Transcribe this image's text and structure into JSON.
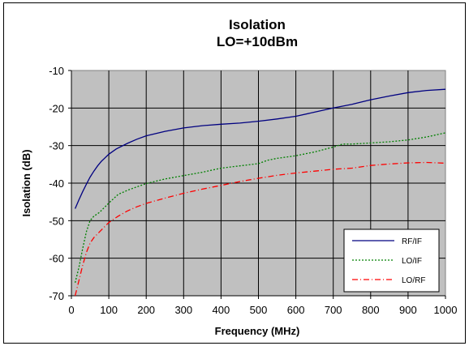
{
  "chart_data": {
    "type": "line",
    "title": "Isolation",
    "subtitle": "LO=+10dBm",
    "xlabel": "Frequency (MHz)",
    "ylabel": "Isolation (dB)",
    "xlim": [
      0,
      1000
    ],
    "ylim": [
      -70,
      -10
    ],
    "x_ticks": [
      "0",
      "100",
      "200",
      "300",
      "400",
      "500",
      "600",
      "700",
      "800",
      "900",
      "1000"
    ],
    "y_ticks": [
      "-10",
      "-20",
      "-30",
      "-40",
      "-50",
      "-60",
      "-70"
    ],
    "grid": true,
    "legend_position": "bottom-right",
    "plot_background": "#c0c0c0",
    "series": [
      {
        "name": "RF/IF",
        "color": "#000080",
        "dash": "solid",
        "x": [
          10,
          20,
          30,
          40,
          50,
          60,
          70,
          80,
          100,
          120,
          150,
          175,
          200,
          250,
          300,
          350,
          400,
          450,
          500,
          550,
          600,
          650,
          700,
          750,
          800,
          850,
          900,
          950,
          1000
        ],
        "y": [
          -46.8,
          -44.5,
          -42.3,
          -40.3,
          -38.4,
          -36.8,
          -35.4,
          -34.2,
          -32.3,
          -30.9,
          -29.4,
          -28.3,
          -27.4,
          -26.2,
          -25.3,
          -24.7,
          -24.3,
          -24.0,
          -23.5,
          -22.9,
          -22.2,
          -21.1,
          -20.0,
          -19.0,
          -17.8,
          -16.8,
          -15.9,
          -15.3,
          -15.0
        ]
      },
      {
        "name": "LO/IF",
        "color": "#008000",
        "dash": "dotted",
        "x": [
          10,
          20,
          30,
          40,
          50,
          60,
          75,
          100,
          125,
          150,
          175,
          200,
          250,
          300,
          350,
          400,
          450,
          500,
          525,
          550,
          600,
          650,
          700,
          725,
          750,
          800,
          850,
          900,
          950,
          1000
        ],
        "y": [
          -66.5,
          -62.5,
          -57.5,
          -53.0,
          -50.0,
          -48.8,
          -47.8,
          -45.3,
          -43.0,
          -41.9,
          -41.0,
          -40.1,
          -38.9,
          -38.0,
          -37.1,
          -36.0,
          -35.4,
          -34.8,
          -33.9,
          -33.4,
          -32.7,
          -31.7,
          -30.4,
          -29.6,
          -29.6,
          -29.3,
          -29.0,
          -28.5,
          -27.7,
          -26.6
        ]
      },
      {
        "name": "LO/RF",
        "color": "#ff0000",
        "dash": "dashdot",
        "x": [
          10,
          20,
          30,
          40,
          50,
          60,
          75,
          100,
          125,
          150,
          175,
          200,
          250,
          300,
          350,
          400,
          450,
          500,
          550,
          600,
          650,
          700,
          750,
          800,
          850,
          900,
          950,
          1000
        ],
        "y": [
          -70.0,
          -66.0,
          -62.0,
          -58.5,
          -56.0,
          -54.5,
          -53.0,
          -50.5,
          -48.8,
          -47.4,
          -46.3,
          -45.4,
          -44.0,
          -42.7,
          -41.6,
          -40.6,
          -39.6,
          -38.7,
          -37.9,
          -37.3,
          -36.8,
          -36.3,
          -36.0,
          -35.3,
          -34.9,
          -34.6,
          -34.5,
          -34.7
        ]
      }
    ]
  }
}
